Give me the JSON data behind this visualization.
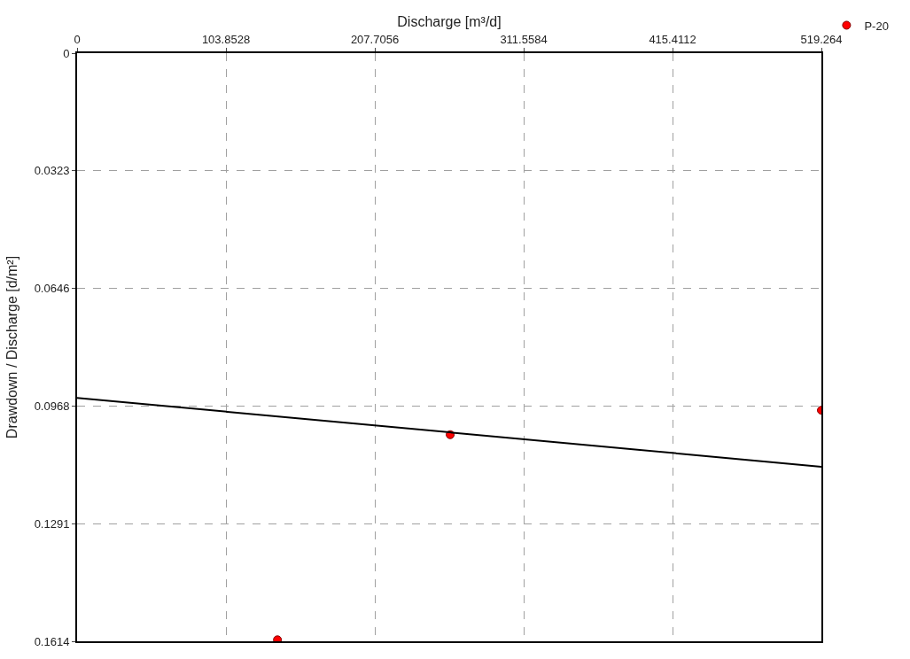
{
  "chart_data": {
    "type": "scatter",
    "xlabel": "Discharge [m³/d]",
    "ylabel": "Drawdown / Discharge [d/m²]",
    "xlim": [
      0,
      519.264
    ],
    "xticks": [
      0,
      103.8528,
      207.7056,
      311.5584,
      415.4112,
      519.264
    ],
    "ylim": [
      0.1614,
      0
    ],
    "yticks": [
      0,
      0.0323,
      0.0646,
      0.0968,
      0.1291,
      0.1614
    ],
    "series": [
      {
        "name": "P-20",
        "color": "#ff0000",
        "x": [
          139.8,
          260.3,
          519.264
        ],
        "values": [
          0.161,
          0.1047,
          0.098
        ],
        "marker": "circle"
      },
      {
        "type": "line",
        "color": "#000000",
        "x": [
          0,
          519.264
        ],
        "values": [
          0.0946,
          0.1135
        ],
        "line_style": "solid"
      }
    ],
    "grid": true,
    "legend": "top right"
  }
}
